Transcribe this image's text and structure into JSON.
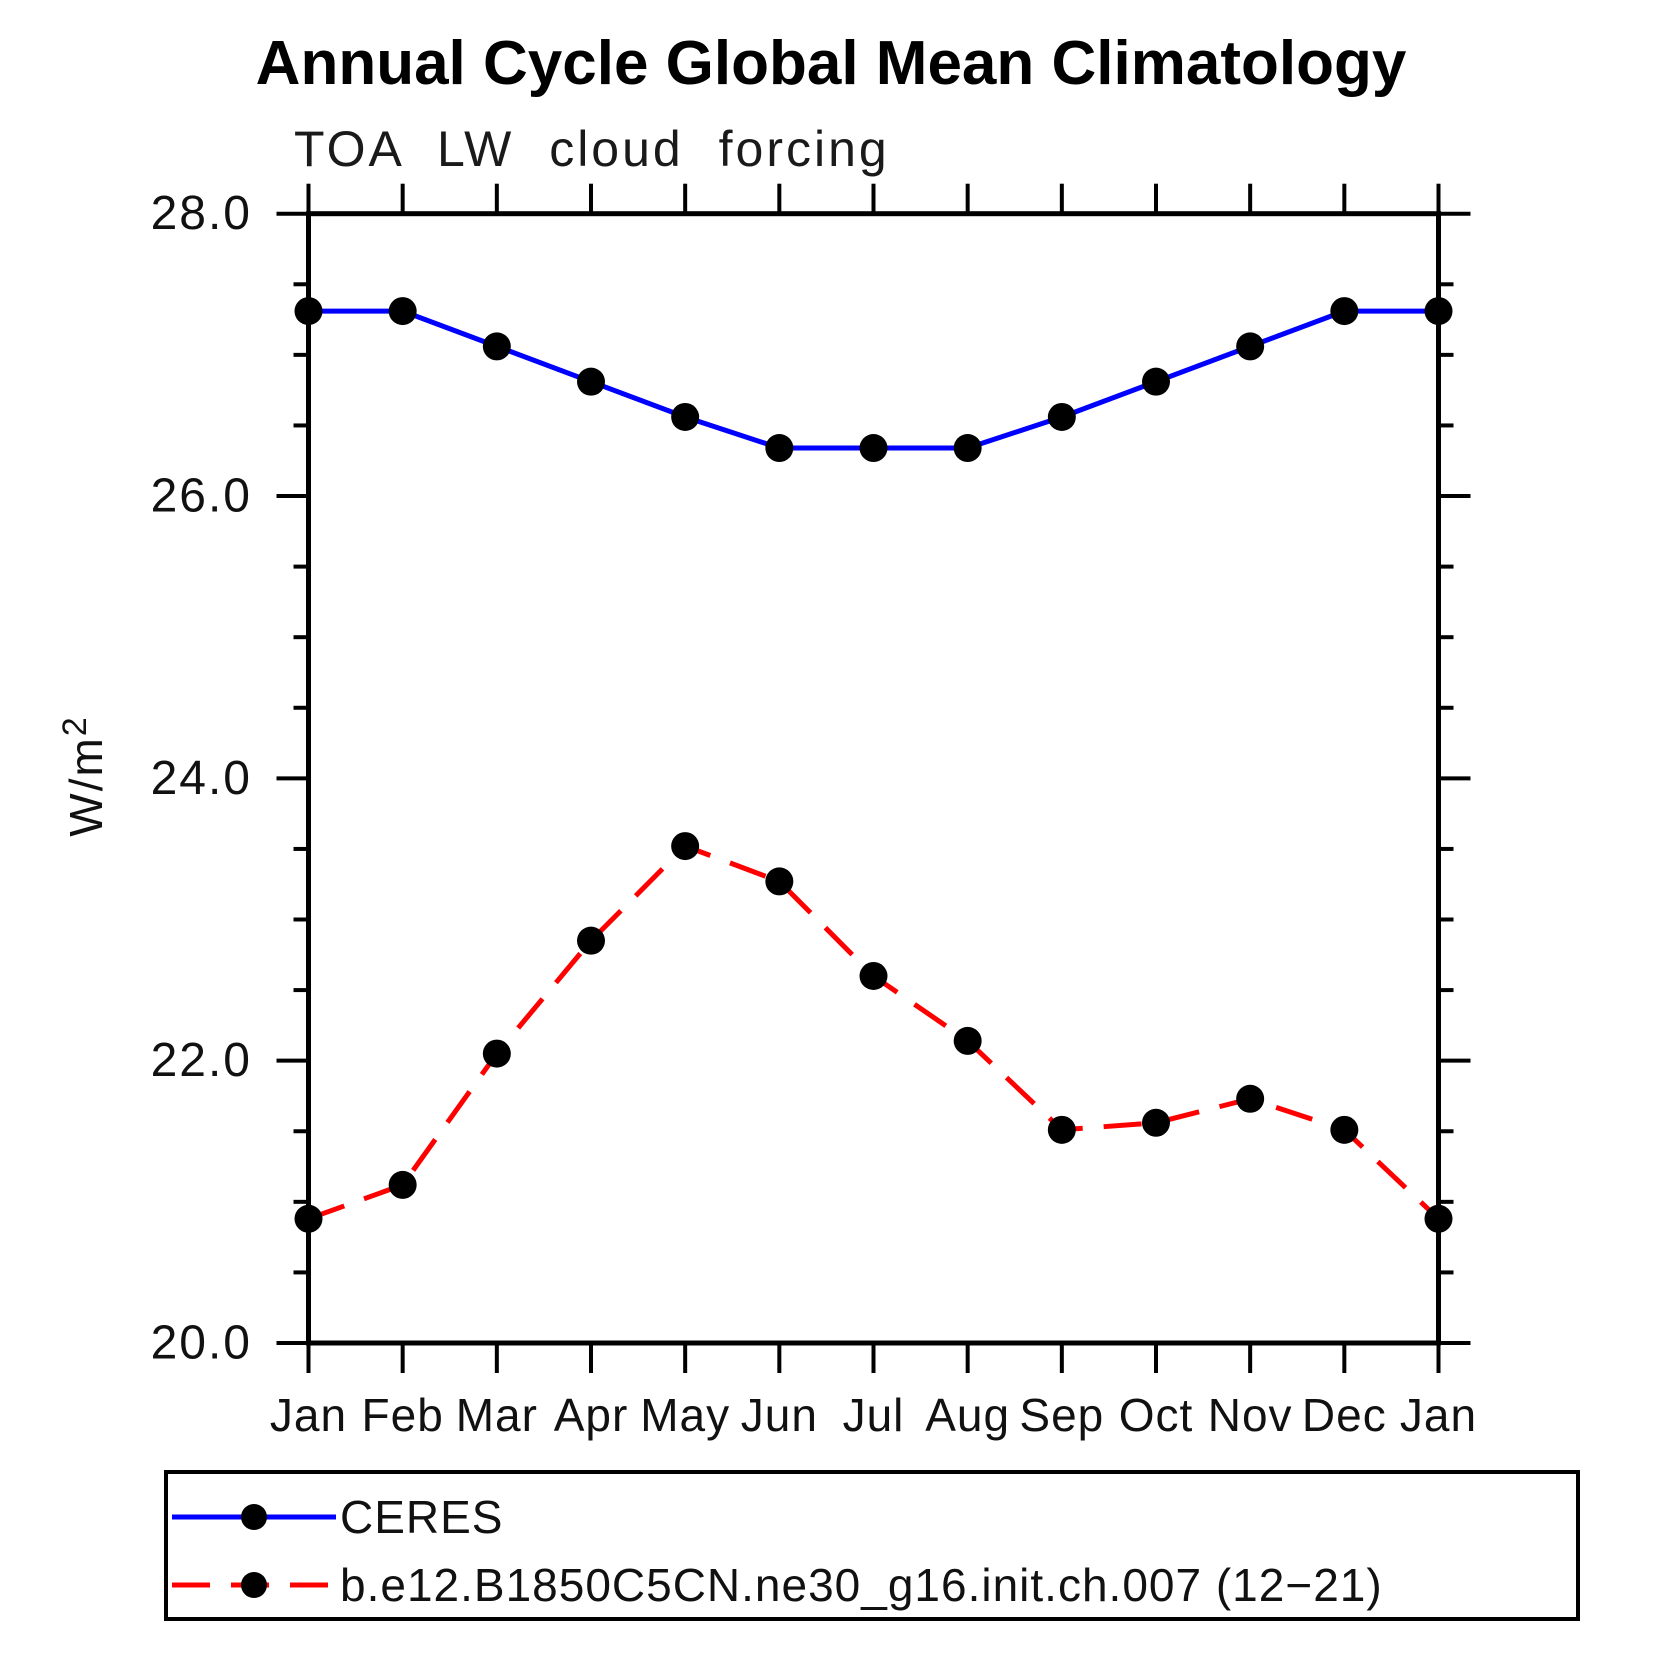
{
  "figure": {
    "title": "Annual Cycle Global Mean Climatology",
    "subtitle": "TOA LW cloud forcing",
    "ylabel_display": {
      "base": "W/m",
      "sup": "2"
    }
  },
  "chart_data": {
    "type": "line",
    "title": "Annual Cycle Global Mean Climatology",
    "subtitle": "TOA LW cloud forcing",
    "xlabel": "",
    "ylabel": "W/m2",
    "categories": [
      "Jan",
      "Feb",
      "Mar",
      "Apr",
      "May",
      "Jun",
      "Jul",
      "Aug",
      "Sep",
      "Oct",
      "Nov",
      "Dec",
      "Jan"
    ],
    "ylim": [
      20.0,
      28.0
    ],
    "ytick_major": [
      20.0,
      22.0,
      24.0,
      26.0,
      28.0
    ],
    "ytick_major_labels": [
      "20.0",
      "22.0",
      "24.0",
      "26.0",
      "28.0"
    ],
    "ytick_minor_step": 0.5,
    "grid": false,
    "legend_position": "bottom-left-box",
    "series": [
      {
        "name": "CERES",
        "color": "#0000ff",
        "line_style": "solid",
        "marker": "black-dot",
        "values": [
          27.31,
          27.31,
          27.06,
          26.81,
          26.56,
          26.34,
          26.34,
          26.34,
          26.56,
          26.81,
          27.06,
          27.31,
          27.31
        ]
      },
      {
        "name": "b.e12.B1850C5CN.ne30_g16.init.ch.007 (12−21)",
        "color": "#ff0000",
        "line_style": "dashed",
        "marker": "black-dot",
        "values": [
          20.88,
          21.12,
          22.05,
          22.85,
          23.52,
          23.27,
          22.6,
          22.14,
          21.51,
          21.56,
          21.73,
          21.51,
          20.88
        ]
      }
    ]
  }
}
